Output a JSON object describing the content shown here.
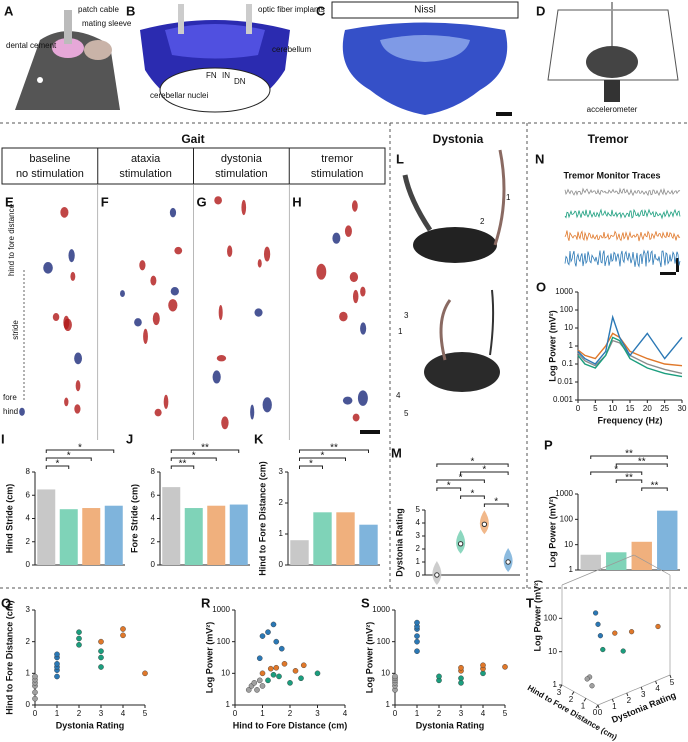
{
  "top": {
    "A": {
      "letter": "A",
      "labels": [
        "patch cable",
        "mating sleeve",
        "dental cement"
      ]
    },
    "B": {
      "letter": "B",
      "labels": [
        "optic fiber implants",
        "cerebellum",
        "cerebellar nuclei",
        "FN",
        "IN",
        "DN"
      ]
    },
    "C": {
      "letter": "C",
      "title": "Nissl"
    },
    "D": {
      "letter": "D",
      "labels": [
        "accelerometer"
      ]
    }
  },
  "gait": {
    "title": "Gait",
    "conditions": [
      {
        "name": "baseline",
        "sub": "no stimulation",
        "color": "#8c8c8c"
      },
      {
        "name": "ataxia",
        "sub": "stimulation",
        "color": "#1b9e7e"
      },
      {
        "name": "dystonia",
        "sub": "stimulation",
        "color": "#e0782a"
      },
      {
        "name": "tremor",
        "sub": "stimulation",
        "color": "#2b78b5"
      }
    ],
    "letters": [
      "E",
      "F",
      "G",
      "H"
    ],
    "annotations": [
      "hind to fore distance",
      "stride",
      "fore",
      "hind"
    ]
  },
  "dystonia": {
    "title": "Dystonia",
    "letter": "L",
    "arrows": [
      "1",
      "2",
      "3",
      "1",
      "4",
      "5"
    ]
  },
  "tremor": {
    "title": "Tremor",
    "letter": "N",
    "trace_title": "Tremor Monitor Traces"
  },
  "charts": [
    {
      "type": "bar",
      "letter": "I",
      "ylabel": "Hind Stride (cm)",
      "ylim": [
        0,
        8
      ],
      "yticks": [
        0,
        2,
        4,
        6,
        8
      ],
      "values": [
        6.5,
        4.8,
        4.9,
        5.1
      ],
      "colors": [
        "#c8c8c8",
        "#7fd3b8",
        "#f0b07d",
        "#7fb4dc"
      ],
      "stars": [
        {
          "from": 0,
          "to": 3,
          "label": "*"
        },
        {
          "from": 0,
          "to": 2,
          "label": "*"
        },
        {
          "from": 0,
          "to": 1,
          "label": "*"
        }
      ]
    },
    {
      "type": "bar",
      "letter": "J",
      "ylabel": "Fore Stride (cm)",
      "ylim": [
        0,
        8
      ],
      "yticks": [
        0,
        2,
        4,
        6,
        8
      ],
      "values": [
        6.7,
        4.9,
        5.1,
        5.2
      ],
      "colors": [
        "#c8c8c8",
        "#7fd3b8",
        "#f0b07d",
        "#7fb4dc"
      ],
      "stars": [
        {
          "from": 0,
          "to": 3,
          "label": "**"
        },
        {
          "from": 0,
          "to": 2,
          "label": "*"
        },
        {
          "from": 0,
          "to": 1,
          "label": "**"
        }
      ]
    },
    {
      "type": "bar",
      "letter": "K",
      "ylabel": "Hind to Fore Distance (cm)",
      "ylim": [
        0,
        3
      ],
      "yticks": [
        0,
        1,
        2,
        3
      ],
      "values": [
        0.8,
        1.7,
        1.7,
        1.3
      ],
      "colors": [
        "#c8c8c8",
        "#7fd3b8",
        "#f0b07d",
        "#7fb4dc"
      ],
      "stars": [
        {
          "from": 0,
          "to": 3,
          "label": "**"
        },
        {
          "from": 0,
          "to": 2,
          "label": "*"
        },
        {
          "from": 0,
          "to": 1,
          "label": "*"
        }
      ]
    },
    {
      "type": "violin",
      "letter": "M",
      "ylabel": "Dystonia Rating",
      "ylim": [
        0,
        5
      ],
      "yticks": [
        0,
        1,
        2,
        3,
        4,
        5
      ],
      "values": [
        0,
        2.4,
        3.9,
        1
      ],
      "colors": [
        "#c8c8c8",
        "#7fd3b8",
        "#f0b07d",
        "#7fb4dc"
      ],
      "stars": [
        {
          "from": 0,
          "to": 3,
          "label": "*"
        },
        {
          "from": 1,
          "to": 3,
          "label": "*"
        },
        {
          "from": 0,
          "to": 2,
          "label": "*"
        },
        {
          "from": 0,
          "to": 1,
          "label": "*"
        },
        {
          "from": 1,
          "to": 2,
          "label": "*"
        },
        {
          "from": 2,
          "to": 3,
          "label": "*"
        }
      ]
    },
    {
      "type": "bar",
      "letter": "P",
      "ylabel": "Log Power (mV²)",
      "log_y": true,
      "ylim": [
        1,
        1000
      ],
      "yticks": [
        1,
        10,
        100,
        1000
      ],
      "values": [
        4,
        5,
        13,
        220
      ],
      "colors": [
        "#c8c8c8",
        "#7fd3b8",
        "#f0b07d",
        "#7fb4dc"
      ],
      "stars": [
        {
          "from": 0,
          "to": 3,
          "label": "**"
        },
        {
          "from": 1,
          "to": 3,
          "label": "**"
        },
        {
          "from": 0,
          "to": 2,
          "label": "*"
        },
        {
          "from": 1,
          "to": 2,
          "label": "**"
        },
        {
          "from": 2,
          "to": 3,
          "label": "**"
        }
      ]
    },
    {
      "type": "line",
      "letter": "O",
      "xlabel": "Frequency (Hz)",
      "ylabel": "Log Power (mV²)",
      "log_y": true,
      "xlim": [
        0,
        30
      ],
      "xticks": [
        0,
        5,
        10,
        15,
        20,
        25,
        30
      ],
      "ylim": [
        0.001,
        1000
      ],
      "yticks": [
        0.001,
        0.01,
        0.1,
        1,
        10,
        100,
        1000
      ],
      "series": [
        {
          "color": "#8c8c8c",
          "x": [
            0,
            2,
            5,
            8,
            10,
            12,
            15,
            20,
            25,
            30
          ],
          "values": [
            0.4,
            0.15,
            0.08,
            0.3,
            2,
            1.5,
            0.3,
            0.1,
            0.05,
            0.03
          ]
        },
        {
          "color": "#1b9e7e",
          "x": [
            0,
            2,
            5,
            8,
            10,
            12,
            15,
            20,
            25,
            30
          ],
          "values": [
            0.3,
            0.1,
            0.06,
            0.3,
            3,
            2,
            0.2,
            0.06,
            0.03,
            0.02
          ]
        },
        {
          "color": "#e0782a",
          "x": [
            0,
            2,
            5,
            8,
            10,
            12,
            15,
            20,
            25,
            30
          ],
          "values": [
            0.6,
            0.3,
            0.2,
            1,
            5,
            3,
            0.5,
            0.2,
            0.1,
            0.08
          ]
        },
        {
          "color": "#2b78b5",
          "x": [
            0,
            2,
            5,
            8,
            10,
            12,
            15,
            20,
            25,
            30
          ],
          "values": [
            0.5,
            0.2,
            0.1,
            0.5,
            40,
            3,
            0.3,
            5,
            0.2,
            3
          ]
        }
      ]
    },
    {
      "type": "scatter",
      "letter": "Q",
      "xlabel": "Dystonia Rating",
      "ylabel": "Hind to Fore Distance (cm)",
      "xlim": [
        0,
        5
      ],
      "xticks": [
        0,
        1,
        2,
        3,
        4,
        5
      ],
      "ylim": [
        0,
        3
      ],
      "yticks": [
        0,
        1,
        2,
        3
      ],
      "series": [
        {
          "color": "#a0a0a0",
          "x": [
            0,
            0,
            0,
            0,
            0,
            0
          ],
          "values": [
            0.2,
            0.4,
            0.6,
            0.7,
            0.8,
            0.9
          ]
        },
        {
          "color": "#2b78b5",
          "x": [
            1,
            1,
            1,
            1,
            1,
            1
          ],
          "values": [
            0.9,
            1.1,
            1.2,
            1.3,
            1.5,
            1.6
          ]
        },
        {
          "color": "#1b9e7e",
          "x": [
            2,
            2,
            2,
            3,
            3,
            3
          ],
          "values": [
            1.9,
            2.1,
            2.3,
            1.2,
            1.5,
            1.7
          ]
        },
        {
          "color": "#e0782a",
          "x": [
            3,
            4,
            4,
            5
          ],
          "values": [
            2.0,
            2.2,
            2.4,
            1.0
          ]
        }
      ]
    },
    {
      "type": "scatter",
      "letter": "R",
      "xlabel": "Hind to Fore Distance (cm)",
      "ylabel": "Log Power (mV²)",
      "log_y": true,
      "xlim": [
        0,
        4
      ],
      "xticks": [
        0,
        1,
        2,
        3,
        4
      ],
      "ylim": [
        1,
        1000
      ],
      "yticks": [
        1,
        10,
        100,
        1000
      ],
      "series": [
        {
          "color": "#a0a0a0",
          "x": [
            0.5,
            0.6,
            0.7,
            0.8,
            0.9,
            1.0
          ],
          "values": [
            3,
            4,
            5,
            3,
            6,
            4
          ]
        },
        {
          "color": "#1b9e7e",
          "x": [
            1.2,
            1.6,
            2.0,
            2.4,
            3.0,
            1.4
          ],
          "values": [
            6,
            8,
            5,
            7,
            10,
            9
          ]
        },
        {
          "color": "#e0782a",
          "x": [
            1.0,
            1.5,
            1.8,
            2.2,
            2.5,
            1.3
          ],
          "values": [
            10,
            15,
            20,
            12,
            18,
            14
          ]
        },
        {
          "color": "#2b78b5",
          "x": [
            0.9,
            1.0,
            1.2,
            1.4,
            1.5,
            1.7
          ],
          "values": [
            30,
            150,
            200,
            350,
            100,
            60
          ]
        }
      ]
    },
    {
      "type": "scatter",
      "letter": "S",
      "xlabel": "Dystonia Rating",
      "ylabel": "Log Power (mV²)",
      "log_y": true,
      "xlim": [
        0,
        5
      ],
      "xticks": [
        0,
        1,
        2,
        3,
        4,
        5
      ],
      "ylim": [
        1,
        1000
      ],
      "yticks": [
        1,
        10,
        100,
        1000
      ],
      "series": [
        {
          "color": "#a0a0a0",
          "x": [
            0,
            0,
            0,
            0,
            0,
            0
          ],
          "values": [
            3,
            4,
            5,
            6,
            7,
            8
          ]
        },
        {
          "color": "#2b78b5",
          "x": [
            1,
            1,
            1,
            1,
            1,
            1
          ],
          "values": [
            50,
            100,
            150,
            250,
            300,
            400
          ]
        },
        {
          "color": "#1b9e7e",
          "x": [
            2,
            2,
            3,
            3,
            4
          ],
          "values": [
            6,
            8,
            5,
            7,
            10
          ]
        },
        {
          "color": "#e0782a",
          "x": [
            3,
            3,
            4,
            4,
            5
          ],
          "values": [
            12,
            15,
            14,
            18,
            16
          ]
        }
      ]
    },
    {
      "type": "scatter3d",
      "letter": "T",
      "xlabel": "Dystonia Rating",
      "ylabel": "Hind to Fore Distance (cm)",
      "zlabel": "Log Power (mV²)",
      "xlim": [
        0,
        5
      ],
      "xticks": [
        0,
        1,
        2,
        3,
        4,
        5
      ],
      "ylim": [
        0,
        3
      ],
      "yticks": [
        0,
        1,
        2,
        3
      ],
      "log_z": true,
      "zlim": [
        1,
        1000
      ],
      "zticks": [
        1,
        10,
        100
      ],
      "series": [
        {
          "color": "#a0a0a0",
          "x": [
            0,
            0,
            0
          ],
          "y": [
            0.5,
            0.7,
            0.9
          ],
          "values": [
            3,
            5,
            4
          ]
        },
        {
          "color": "#2b78b5",
          "x": [
            1,
            1,
            1
          ],
          "y": [
            1.2,
            1.4,
            1.0
          ],
          "values": [
            100,
            200,
            50
          ]
        },
        {
          "color": "#1b9e7e",
          "x": [
            2,
            3
          ],
          "y": [
            2.0,
            1.5
          ],
          "values": [
            8,
            6
          ]
        },
        {
          "color": "#e0782a",
          "x": [
            3,
            4,
            5
          ],
          "y": [
            2.2,
            2.0,
            1.0
          ],
          "values": [
            15,
            12,
            18
          ]
        }
      ]
    }
  ]
}
